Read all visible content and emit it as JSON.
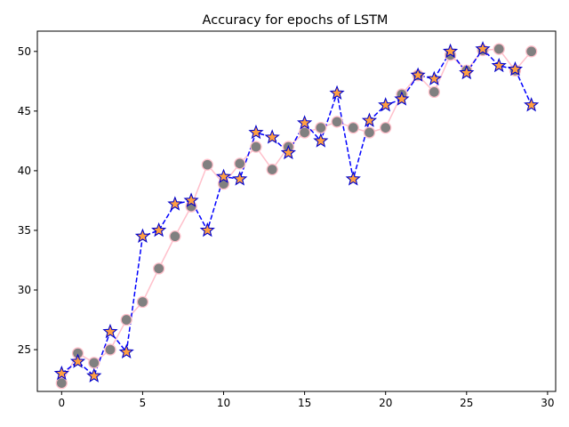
{
  "chart_data": {
    "type": "line",
    "title": "Accuracy for epochs of LSTM",
    "xlabel": "",
    "ylabel": "",
    "xlim": [
      -1.5,
      30.5
    ],
    "ylim": [
      21.5,
      51.7
    ],
    "xticks": [
      0,
      5,
      10,
      15,
      20,
      25,
      30
    ],
    "yticks": [
      25,
      30,
      35,
      40,
      45,
      50
    ],
    "grid": false,
    "x": [
      0,
      1,
      2,
      3,
      4,
      5,
      6,
      7,
      8,
      9,
      10,
      11,
      12,
      13,
      14,
      15,
      16,
      17,
      18,
      19,
      20,
      21,
      22,
      23,
      24,
      25,
      26,
      27,
      28,
      29
    ],
    "series": [
      {
        "style": "circle-pink-line",
        "line_color": "#ffc0cb",
        "marker_fill": "#808080",
        "marker_edge": "#ffc0cb",
        "values": [
          22.2,
          24.7,
          23.9,
          25.0,
          27.5,
          29.0,
          31.8,
          34.5,
          37.0,
          40.5,
          38.9,
          40.6,
          42.0,
          40.1,
          42.0,
          43.2,
          43.6,
          44.1,
          43.6,
          43.2,
          43.6,
          46.4,
          48.0,
          46.6,
          49.7,
          48.4,
          50.1,
          50.2,
          48.4,
          50.0
        ]
      },
      {
        "style": "star-blue-dashed",
        "line_color": "#0000ff",
        "marker_fill": "#ffa040",
        "marker_edge": "#0000cc",
        "values": [
          23.0,
          24.0,
          22.8,
          26.5,
          24.8,
          34.5,
          35.0,
          37.2,
          37.5,
          35.0,
          39.5,
          39.3,
          43.2,
          42.8,
          41.5,
          44.0,
          42.5,
          46.5,
          39.3,
          44.2,
          45.5,
          46.0,
          48.0,
          47.7,
          50.0,
          48.2,
          50.2,
          48.8,
          48.5,
          45.5
        ]
      }
    ]
  }
}
